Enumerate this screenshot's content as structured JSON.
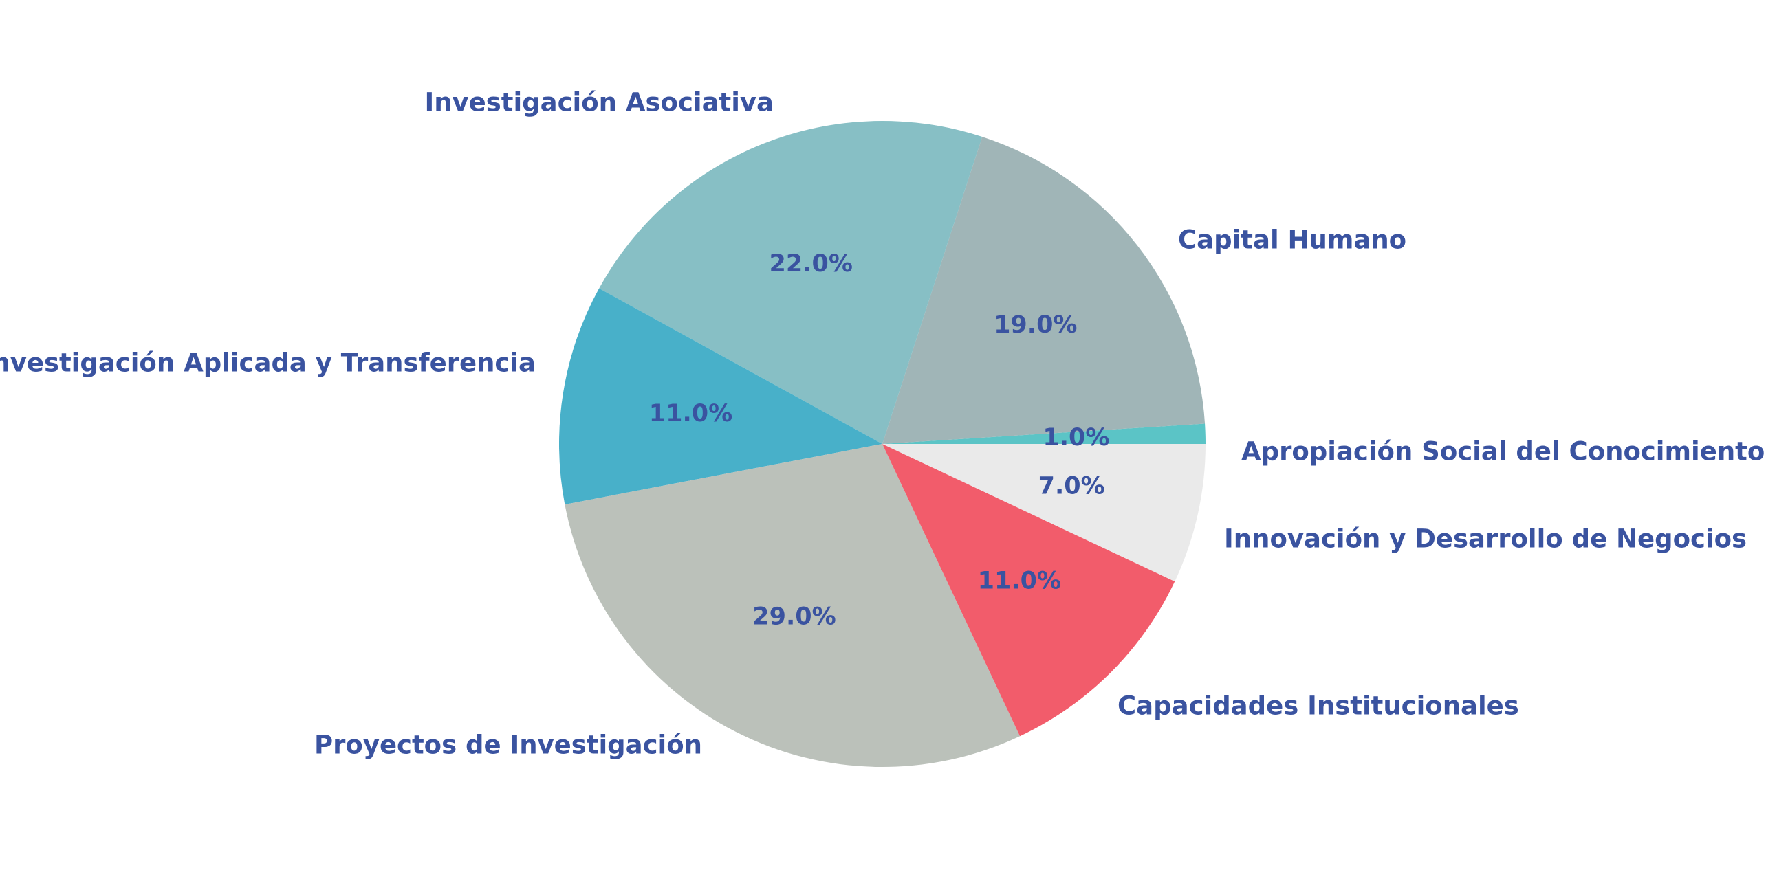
{
  "chart_data": {
    "type": "pie",
    "title": "",
    "slices": [
      {
        "label": "Apropiación Social del Conocimiento",
        "value": 1.0,
        "pct_label": "1.0%",
        "color": "#5BC4C6"
      },
      {
        "label": "Capital Humano",
        "value": 19.0,
        "pct_label": "19.0%",
        "color": "#A0B5B7"
      },
      {
        "label": "Investigación Asociativa",
        "value": 22.0,
        "pct_label": "22.0%",
        "color": "#87BFC5"
      },
      {
        "label": "Investigación Aplicada y Transferencia",
        "value": 11.0,
        "pct_label": "11.0%",
        "color": "#48B0C9"
      },
      {
        "label": "Proyectos de Investigación",
        "value": 29.0,
        "pct_label": "29.0%",
        "color": "#BBC1BA"
      },
      {
        "label": "Capacidades Institucionales",
        "value": 11.0,
        "pct_label": "11.0%",
        "color": "#F25C6B"
      },
      {
        "label": "Innovación y Desarrollo de Negocios",
        "value": 7.0,
        "pct_label": "7.0%",
        "color": "#EAEAEA"
      }
    ],
    "start_direction": "3 o'clock",
    "direction": "counterclockwise",
    "label_color": "#3A53A0",
    "legend": "none"
  }
}
